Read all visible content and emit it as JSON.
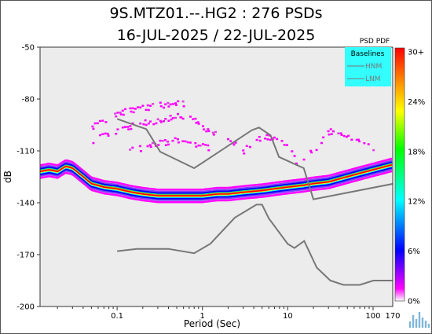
{
  "title_line1": "9S.MTZ01.--.HG2 : 276 PSDs",
  "title_line2": "16-JUL-2025 / 22-JUL-2025",
  "colorbar_title": "PSD PDF",
  "logo_icon": "seismic-waveform-logo-icon",
  "chart_data": {
    "type": "heatmap",
    "title": "9S.MTZ01.--.HG2 : 276 PSDs",
    "subtitle": "16-JUL-2025 / 22-JUL-2025",
    "xlabel": "Period (Sec)",
    "ylabel": "dB",
    "x_scale": "log",
    "xlim": [
      0.0125,
      170
    ],
    "ylim": [
      -200,
      -50
    ],
    "x_ticks": [
      {
        "value": 0.1,
        "label": "0.1"
      },
      {
        "value": 1,
        "label": "1"
      },
      {
        "value": 10,
        "label": "10"
      },
      {
        "value": 100,
        "label": "100"
      },
      {
        "value": 170,
        "label": "170"
      }
    ],
    "y_ticks": [
      -50,
      -80,
      -110,
      -140,
      -170,
      -200
    ],
    "legend": {
      "title": "Baselines",
      "placement": "top-right",
      "background": "#33ffff",
      "entries": [
        "HNM",
        "LNM"
      ]
    },
    "baselines": [
      {
        "name": "HNM",
        "color": "#777777",
        "x": [
          0.1,
          0.22,
          0.32,
          0.8,
          3.8,
          4.6,
          6.3,
          7.9,
          15.4,
          20,
          354.8
        ],
        "y": [
          -91.5,
          -97.4,
          -110.5,
          -120,
          -98,
          -96.5,
          -101,
          -113.5,
          -120,
          -138,
          -126
        ]
      },
      {
        "name": "LNM",
        "color": "#777777",
        "x": [
          0.1,
          0.17,
          0.4,
          0.8,
          1.24,
          2.4,
          4.3,
          5,
          6,
          10,
          12,
          15.6,
          21.9,
          31.6,
          45,
          70,
          101,
          154,
          328
        ],
        "y": [
          -168,
          -166.7,
          -166.7,
          -169.2,
          -163.7,
          -148.6,
          -141.1,
          -141.1,
          -149,
          -163.8,
          -166.2,
          -162.1,
          -177.5,
          -185,
          -187.5,
          -187.5,
          -185,
          -185,
          -185
        ]
      }
    ],
    "pdf_mode_curve": {
      "x": [
        0.0125,
        0.016,
        0.02,
        0.025,
        0.03,
        0.04,
        0.05,
        0.07,
        0.1,
        0.15,
        0.2,
        0.3,
        0.5,
        0.7,
        1,
        1.5,
        2,
        3,
        5,
        7,
        10,
        15,
        20,
        30,
        50,
        70,
        100,
        170
      ],
      "y": [
        -122,
        -121,
        -122,
        -119,
        -120,
        -125,
        -129,
        -131,
        -132,
        -134,
        -135,
        -136,
        -136,
        -136,
        -136,
        -135,
        -135,
        -134,
        -133,
        -132,
        -131,
        -130,
        -129,
        -128,
        -125,
        -123,
        -121,
        -118
      ]
    },
    "outlier_bands": [
      {
        "x": [
          0.05,
          0.08,
          0.12,
          0.2,
          0.3,
          0.45,
          0.6
        ],
        "y": [
          -95,
          -90,
          -86,
          -84,
          -83,
          -82,
          -82
        ]
      },
      {
        "x": [
          0.05,
          0.08,
          0.12,
          0.2,
          0.3,
          0.45,
          0.6
        ],
        "y": [
          -103,
          -99,
          -96,
          -93,
          -92,
          -90,
          -91
        ]
      },
      {
        "x": [
          0.12,
          0.2,
          0.3,
          0.5,
          0.8,
          1.2
        ],
        "y": [
          -110,
          -107,
          -105,
          -103,
          -105,
          -108
        ]
      },
      {
        "x": [
          0.5,
          0.8,
          1.2,
          2,
          3
        ],
        "y": [
          -88,
          -92,
          -98,
          -103,
          -110
        ]
      },
      {
        "x": [
          3,
          5,
          8,
          12
        ],
        "y": [
          -108,
          -101,
          -103,
          -113
        ]
      },
      {
        "x": [
          12,
          20,
          30,
          45,
          70,
          100
        ],
        "y": [
          -116,
          -108,
          -98,
          -100,
          -103,
          -109
        ]
      }
    ],
    "colorbar": {
      "title": "PSD PDF",
      "ticks": [
        "0%",
        "6%",
        "12%",
        "18%",
        "24%",
        "30+"
      ],
      "colors": [
        "#ffffff",
        "#ff00ff",
        "#0000ff",
        "#00ffff",
        "#00ff00",
        "#ffff00",
        "#ff8000",
        "#ff0000"
      ]
    }
  }
}
